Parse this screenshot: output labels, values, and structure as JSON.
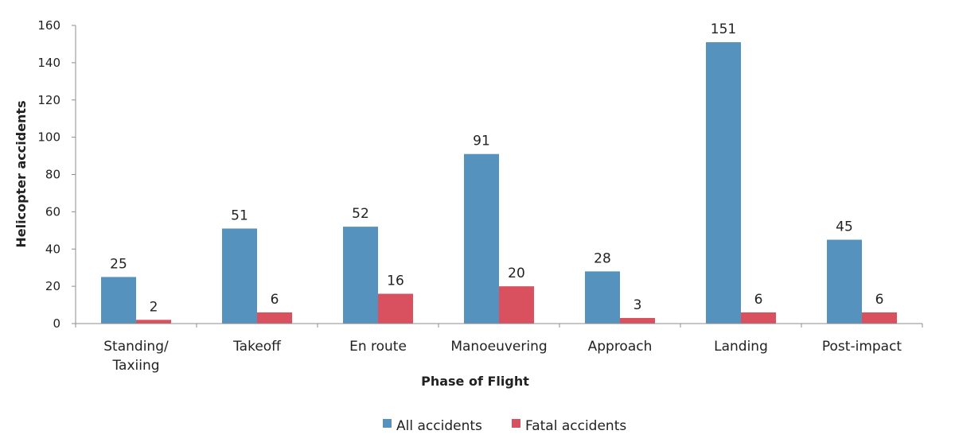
{
  "chart_data": {
    "type": "bar",
    "xlabel": "Phase of Flight",
    "ylabel": "Helicopter accidents",
    "ylim": [
      0,
      160
    ],
    "yticks": [
      0,
      20,
      40,
      60,
      80,
      100,
      120,
      140,
      160
    ],
    "grid": false,
    "legend_position": "bottom",
    "categories": [
      [
        "Standing/",
        "Taxiing"
      ],
      [
        "Takeoff"
      ],
      [
        "En route"
      ],
      [
        "Manoeuvering"
      ],
      [
        "Approach"
      ],
      [
        "Landing"
      ],
      [
        "Post-impact"
      ]
    ],
    "series": [
      {
        "name": "All accidents",
        "color": "#5592BD",
        "values": [
          25,
          51,
          52,
          91,
          28,
          151,
          45
        ]
      },
      {
        "name": "Fatal accidents",
        "color": "#D9505E",
        "values": [
          2,
          6,
          16,
          20,
          3,
          6,
          6
        ]
      }
    ]
  }
}
